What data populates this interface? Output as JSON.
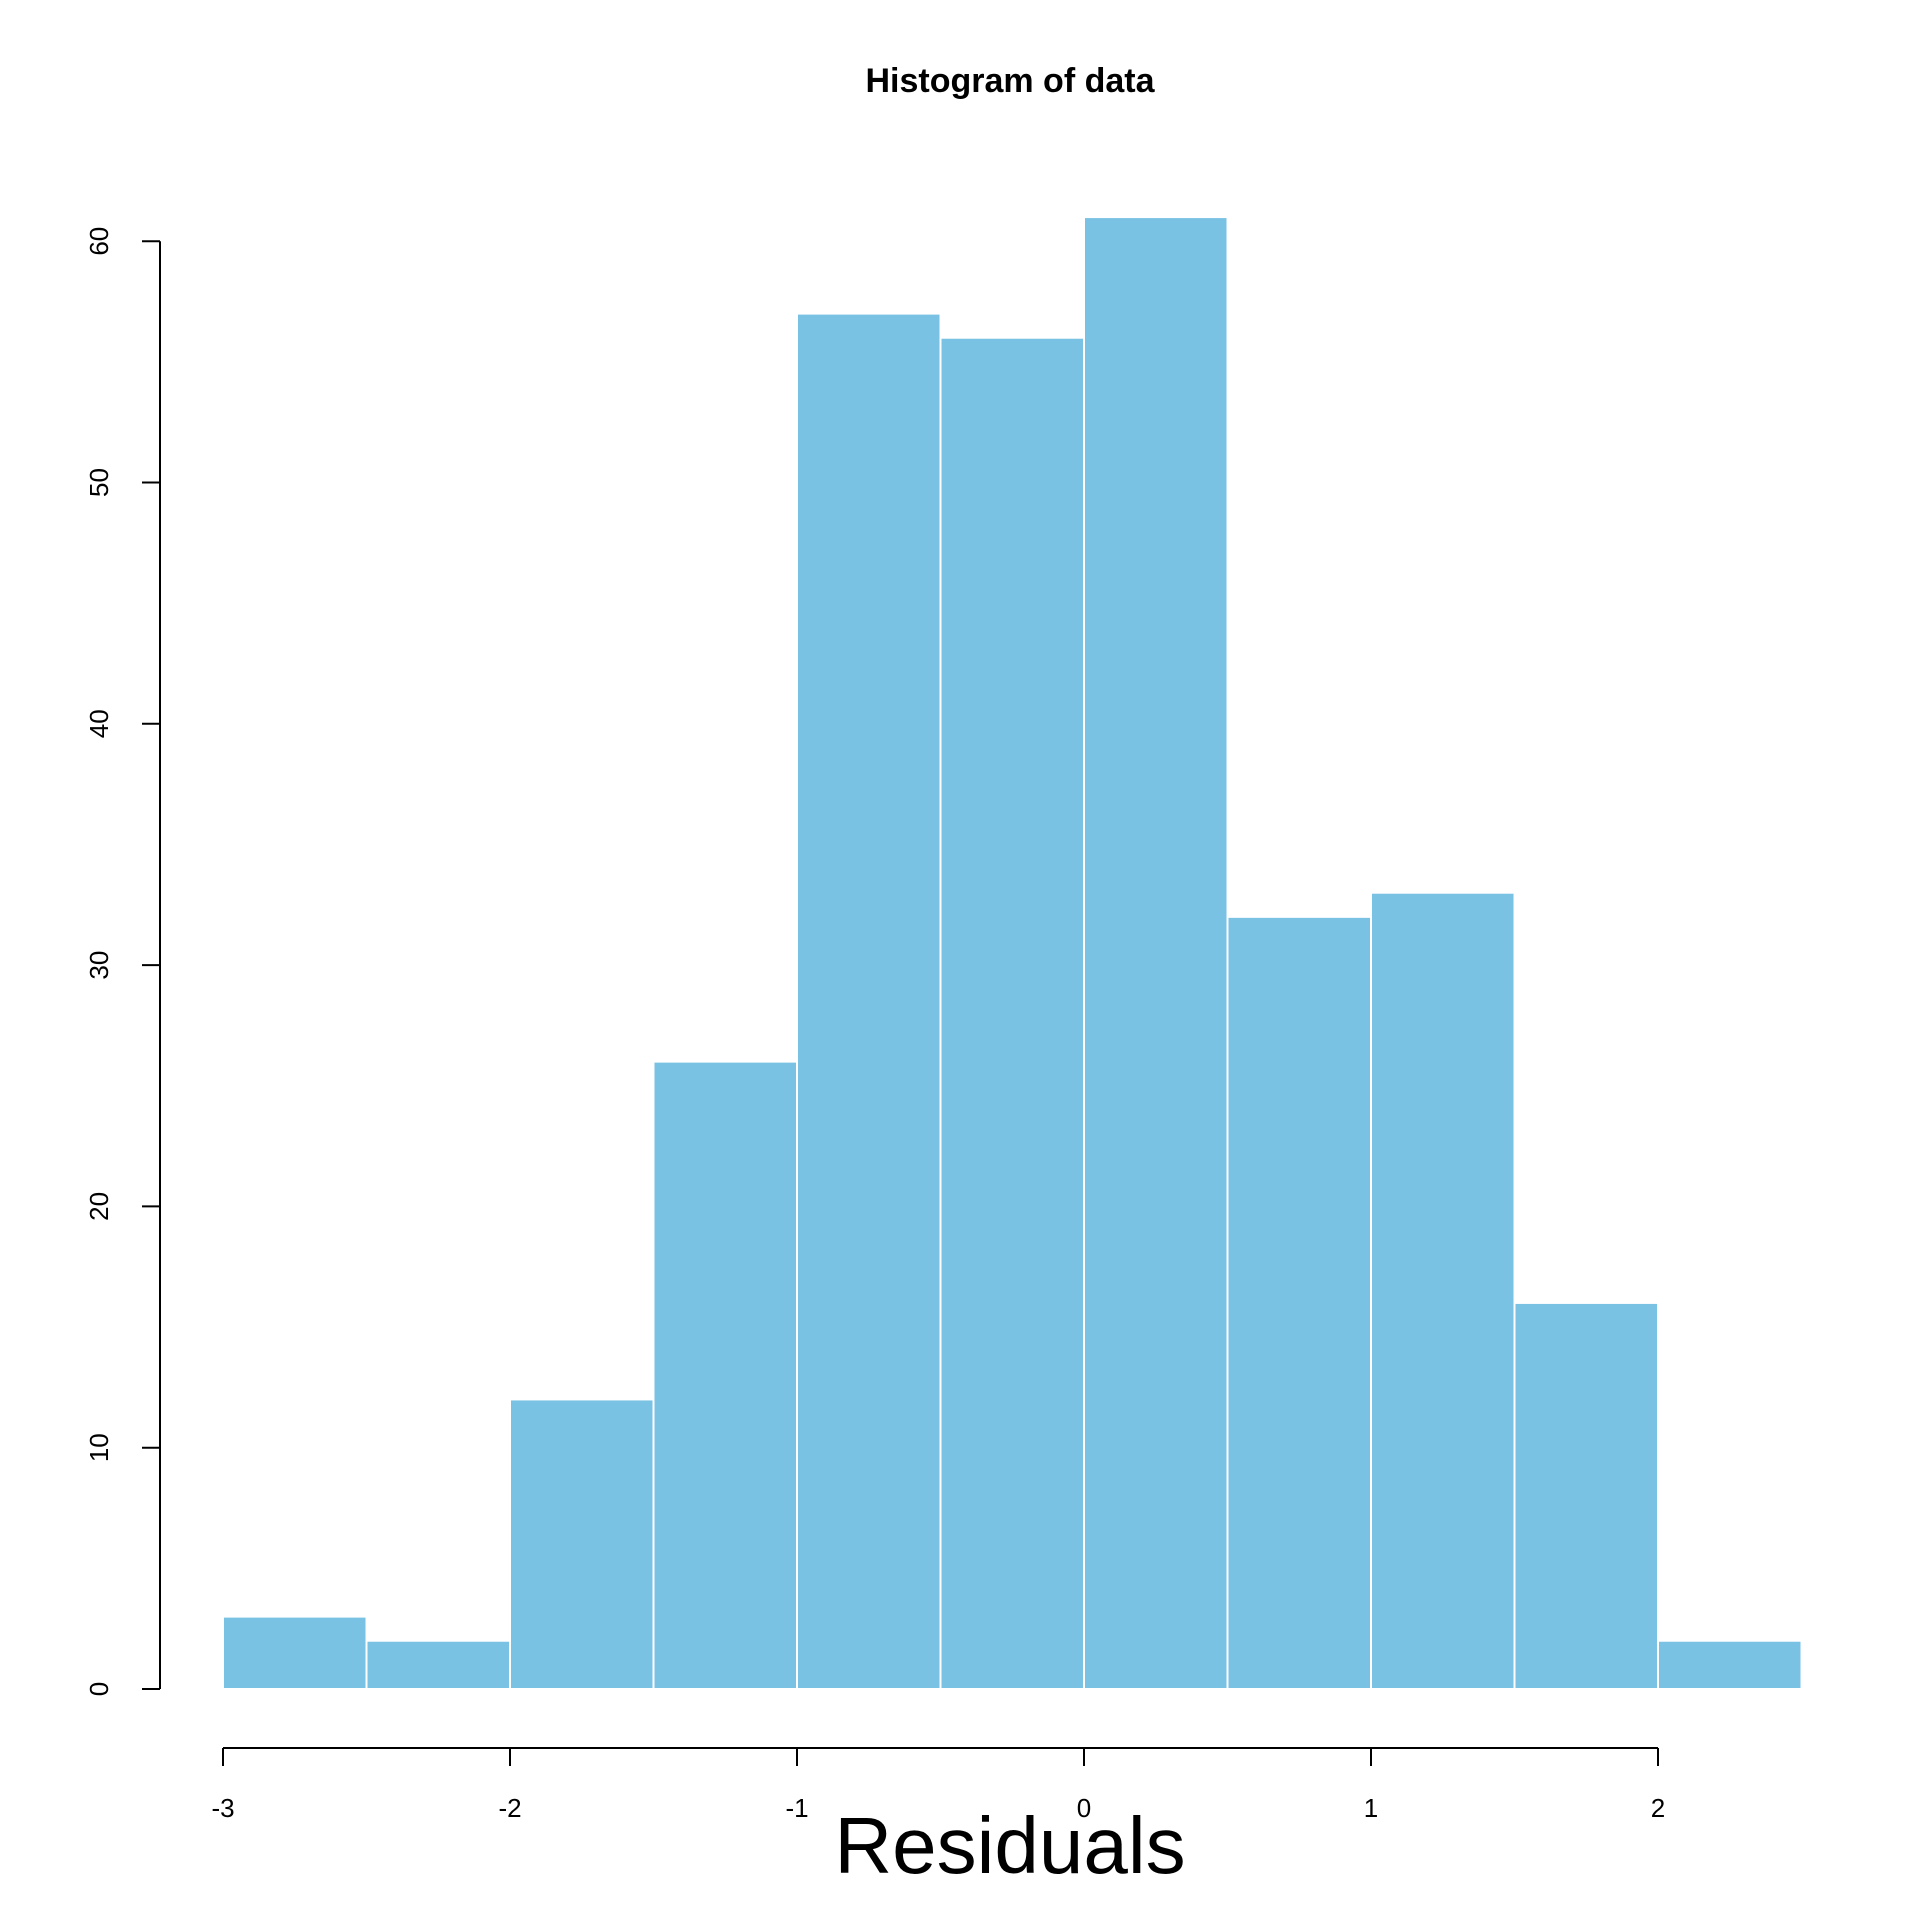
{
  "chart_data": {
    "type": "bar",
    "title": "Histogram of data",
    "xlabel": "Residuals",
    "ylabel": "",
    "bin_edges": [
      -3,
      -2.5,
      -2,
      -1.5,
      -1,
      -0.5,
      0,
      0.5,
      1,
      1.5,
      2,
      2.5
    ],
    "values": [
      3,
      2,
      12,
      26,
      57,
      56,
      61,
      32,
      33,
      16,
      2
    ],
    "xlim": [
      -3,
      2.5
    ],
    "ylim": [
      0,
      61
    ],
    "x_ticks": [
      "-3",
      "-2",
      "-1",
      "0",
      "1",
      "2"
    ],
    "y_ticks": [
      "0",
      "10",
      "20",
      "30",
      "40",
      "50",
      "60"
    ],
    "bar_color": "#7AC2E4",
    "grid": false
  }
}
